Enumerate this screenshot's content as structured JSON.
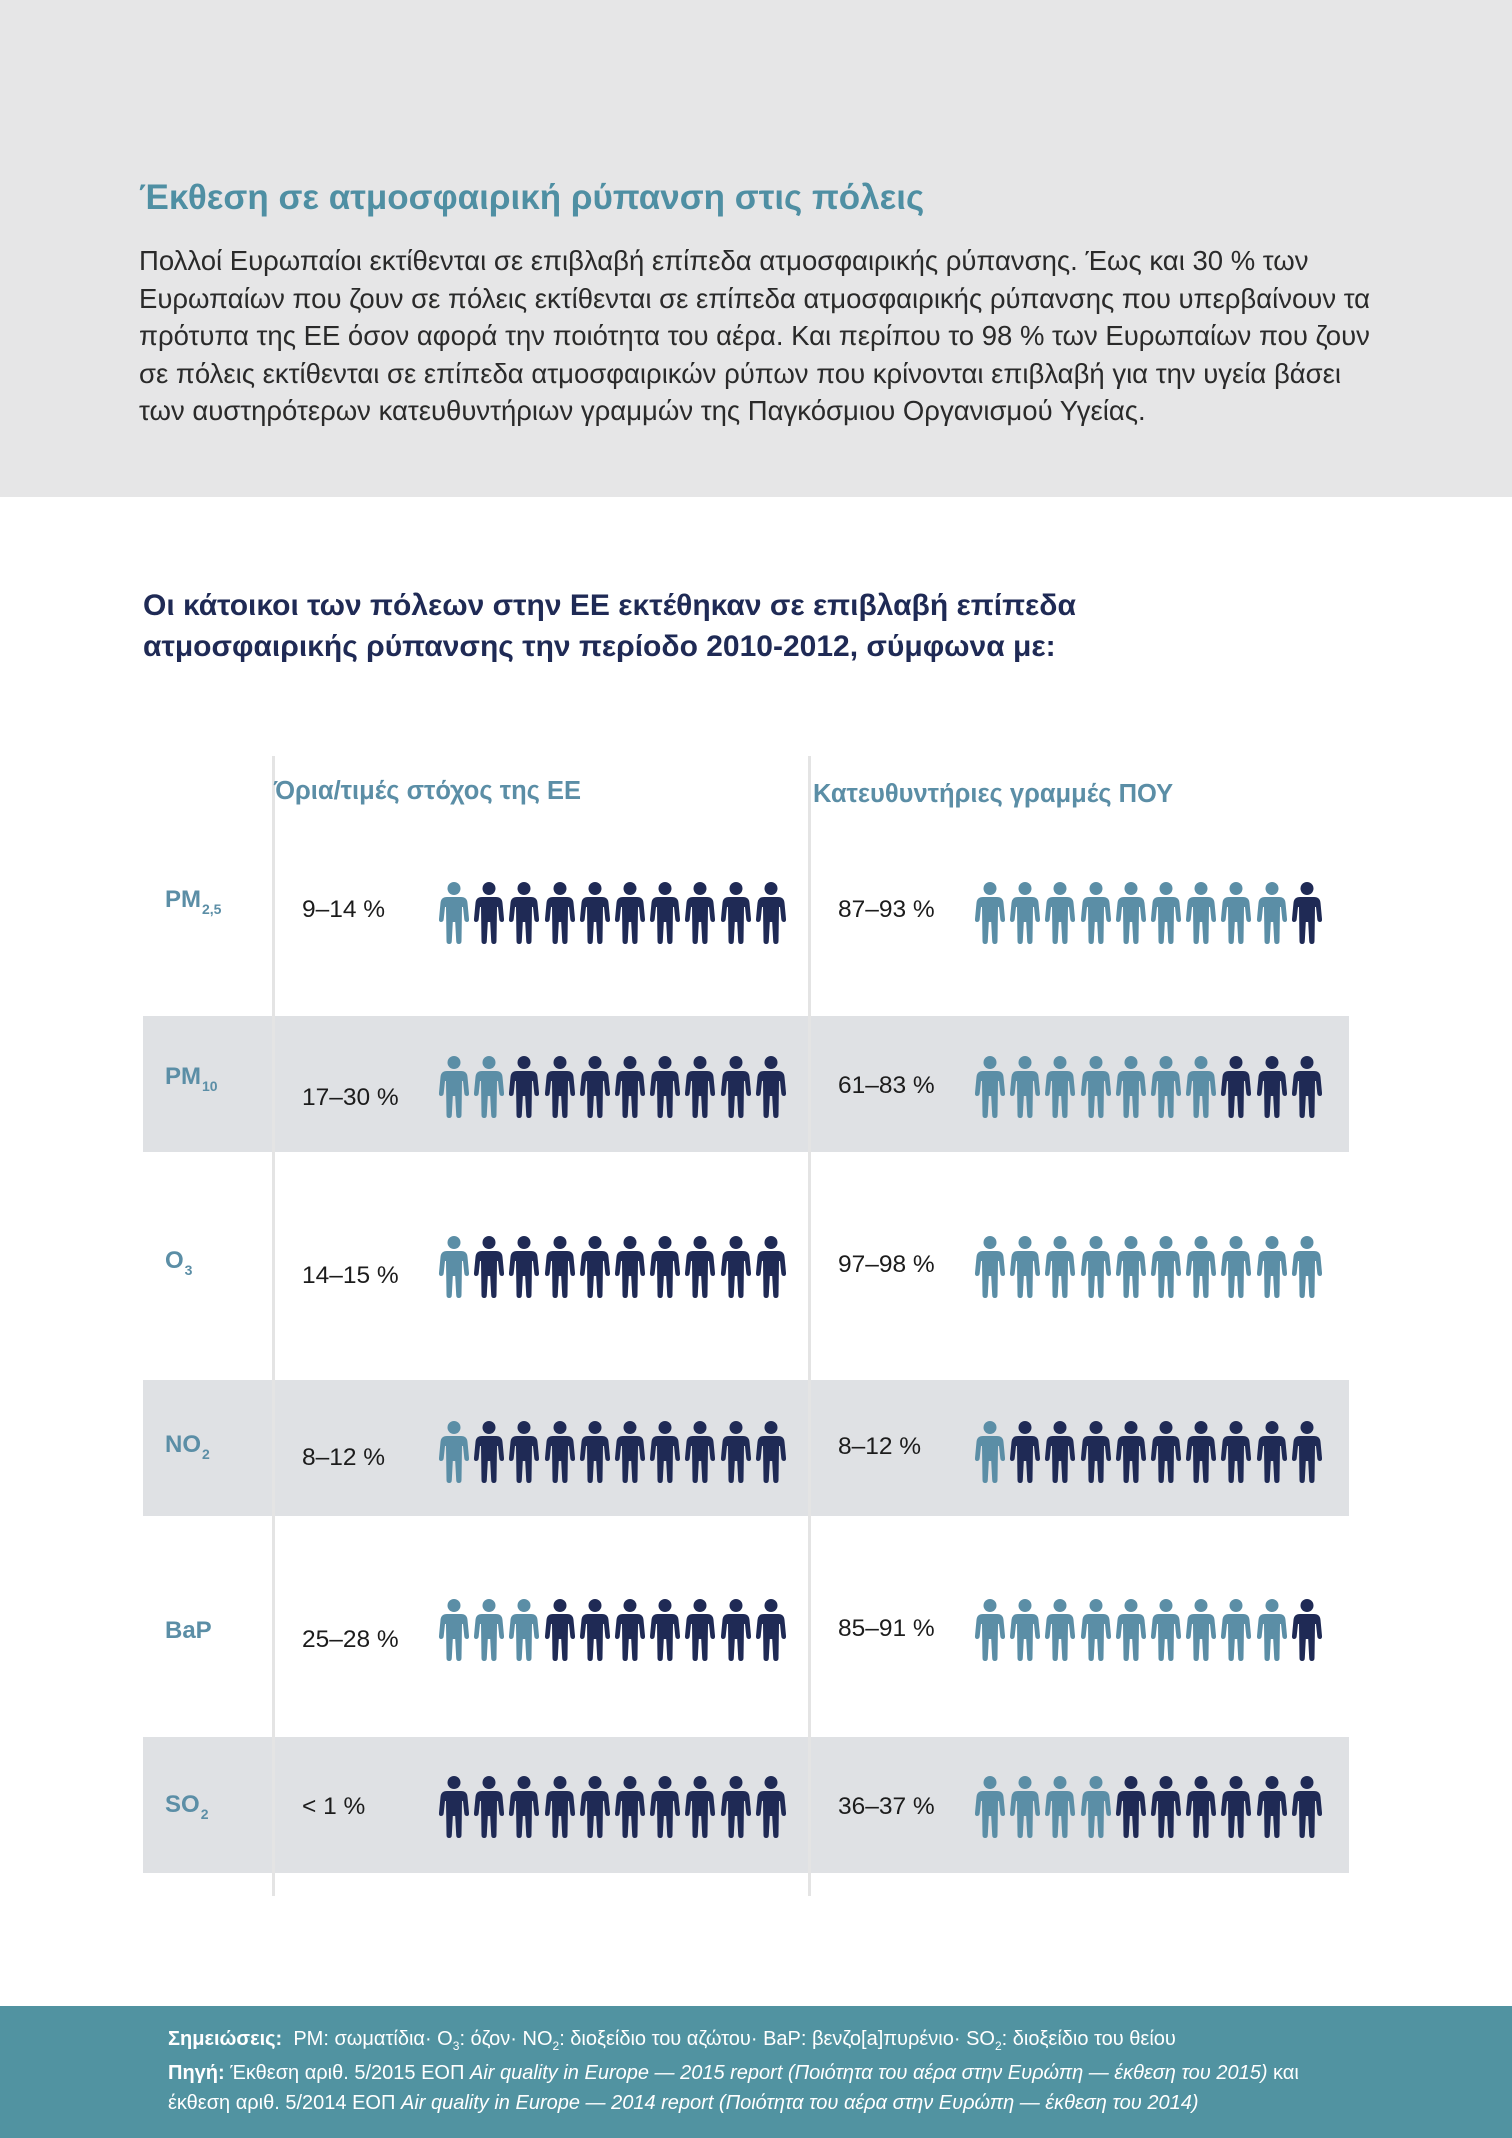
{
  "header": {
    "title": "Έκθεση σε ατμοσφαιρική ρύπανση στις πόλεις",
    "body": "Πολλοί Ευρωπαίοι εκτίθενται σε επιβλαβή επίπεδα ατμοσφαιρικής ρύπανσης. Έως και 30 % των Ευρωπαίων που ζουν σε πόλεις εκτίθενται σε επίπεδα ατμοσφαιρικής ρύπανσης που υπερβαίνουν τα πρότυπα της ΕΕ όσον αφορά την ποιότητα του αέρα. Και περίπου το 98 % των Ευρωπαίων που ζουν σε πόλεις εκτίθενται σε επίπεδα ατμοσφαιρικών ρύπων που κρίνονται επιβλαβή για την υγεία βάσει των αυστηρότερων κατευθυντήριων γραμμών της Παγκόσμιου Οργανισμού Υγείας."
  },
  "infographic": {
    "heading": "Οι κάτοικοι των πόλεων στην ΕΕ εκτέθηκαν σε επιβλαβή επίπεδα ατμοσφαιρικής ρύπανσης την περίοδο 2010-2012, σύμφωνα με:",
    "col_eu": "Όρια/τιμές στόχος της ΕΕ",
    "col_who": "Κατευθυντήριες γραμμές ΠΟΥ",
    "colors": {
      "highlight": "#5b8ea6",
      "base": "#1f2a55",
      "row_shade": "#dfe1e4"
    },
    "icon": "person-icon",
    "rows": [
      {
        "name": "PM",
        "sub": "2,5",
        "eu_pct": "9–14 %",
        "eu_highlight": 1,
        "who_pct": "87–93 %",
        "who_highlight": 9
      },
      {
        "name": "PM",
        "sub": "10",
        "eu_pct": "17–30 %",
        "eu_highlight": 2,
        "who_pct": "61–83 %",
        "who_highlight": 7
      },
      {
        "name": "O",
        "sub": "3",
        "eu_pct": "14–15 %",
        "eu_highlight": 1,
        "who_pct": "97–98 %",
        "who_highlight": 10
      },
      {
        "name": "NO",
        "sub": "2",
        "eu_pct": "8–12 %",
        "eu_highlight": 1,
        "who_pct": "8–12 %",
        "who_highlight": 1
      },
      {
        "name": "BaP",
        "sub": "",
        "eu_pct": "25–28 %",
        "eu_highlight": 3,
        "who_pct": "85–91 %",
        "who_highlight": 9
      },
      {
        "name": "SO",
        "sub": "2",
        "eu_pct": "< 1 %",
        "eu_highlight": 0,
        "who_pct": "36–37 %",
        "who_highlight": 4
      }
    ]
  },
  "footer": {
    "notes_label": "Σημειώσεις:",
    "notes_parts": [
      "PM: σωματίδια· O",
      "3",
      ": όζον· NO",
      "2",
      ": διοξείδιο του αζώτου· BaP: βενζο[a]πυρένιο· SO",
      "2",
      ": διοξείδιο του θείου"
    ],
    "source_label": "Πηγή:",
    "source_1a": "Έκθεση αριθ. 5/2015 ΕΟΠ ",
    "source_1b": "Air quality in Europe — 2015 report (Ποιότητα του αέρα στην Ευρώπη — έκθεση του 2015)",
    "source_1c": " και",
    "source_2a": "έκθεση αριθ. 5/2014 ΕΟΠ ",
    "source_2b": "Air quality in Europe — 2014 report (Ποιότητα του αέρα στην Ευρώπη — έκθεση του 2014)"
  }
}
